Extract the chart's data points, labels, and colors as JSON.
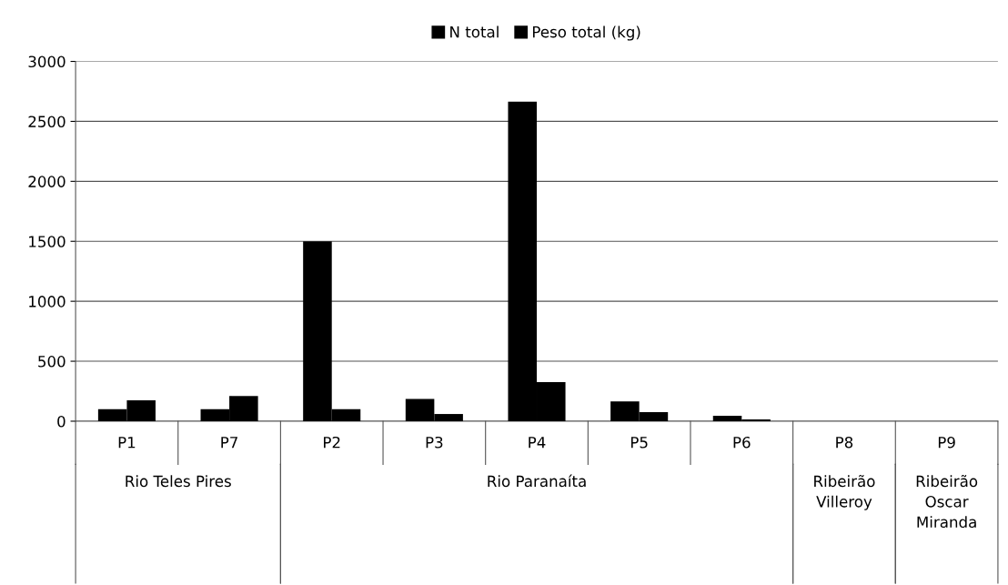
{
  "chart_data": {
    "type": "bar",
    "categories": [
      "P1",
      "P7",
      "P2",
      "P3",
      "P4",
      "P5",
      "P6",
      "P8",
      "P9"
    ],
    "series": [
      {
        "name": "N total",
        "color": "#000000",
        "values": [
          100,
          100,
          1500,
          185,
          2665,
          165,
          45,
          0,
          0
        ]
      },
      {
        "name": "Peso total (kg)",
        "color": "#000000",
        "values": [
          175,
          210,
          100,
          60,
          325,
          75,
          15,
          0,
          0
        ]
      }
    ],
    "annotations": [
      "Rio Teles Pires",
      "Rio Paranaíta",
      "Ribeirão\nVilleroy",
      "Ribeirão\nOscar\nMiranda"
    ],
    "ylim": [
      0,
      3000
    ],
    "yticks": [
      0,
      500,
      1000,
      1500,
      2000,
      2500,
      3000
    ],
    "grid": "y",
    "legend": "top"
  }
}
